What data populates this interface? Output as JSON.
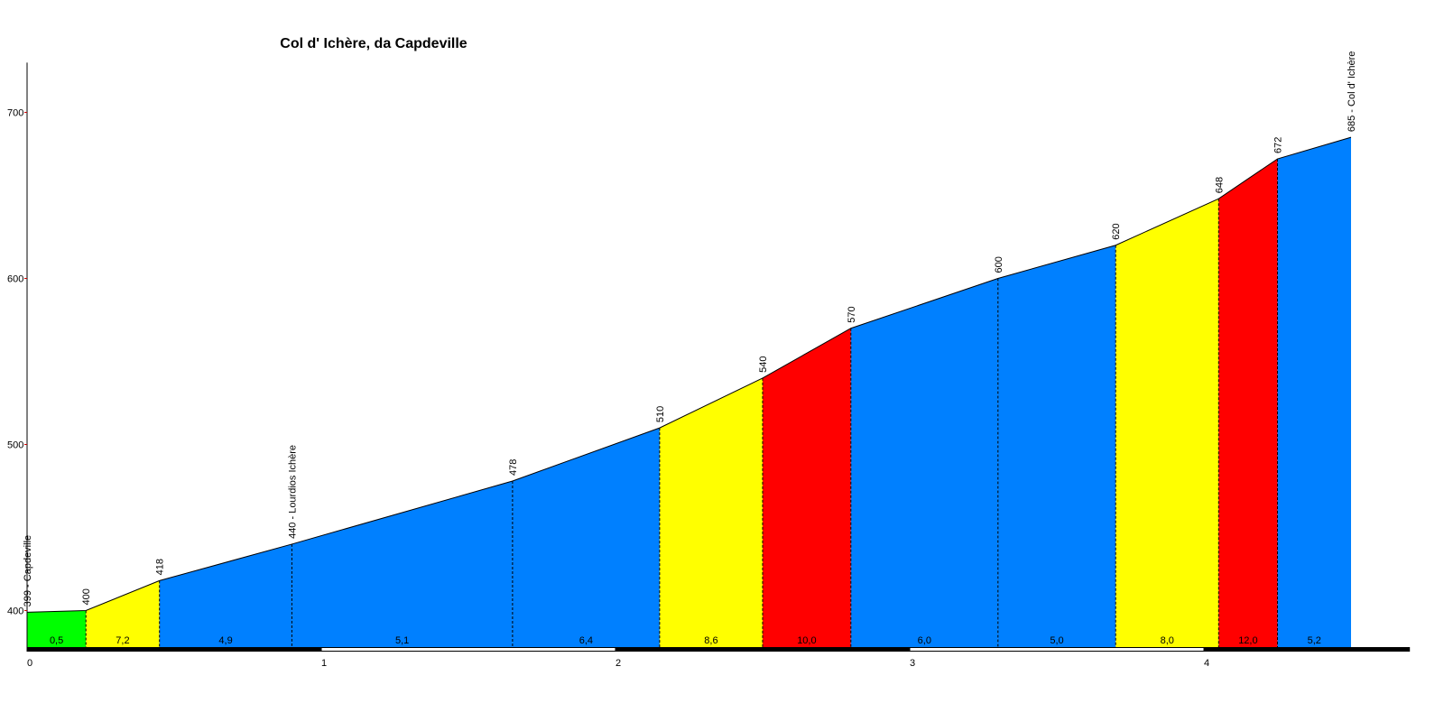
{
  "chart_data": {
    "type": "profile",
    "title": "Col d' Ichère, da Capdeville",
    "x": [
      0,
      0.2,
      0.45,
      0.9,
      1.65,
      2.15,
      2.5,
      2.8,
      3.3,
      3.7,
      4.05,
      4.25,
      4.5
    ],
    "values": [
      399,
      400,
      418,
      440,
      478,
      510,
      540,
      570,
      600,
      620,
      648,
      672,
      685
    ],
    "value_labels": [
      "399 - Capdeville",
      "400",
      "418",
      "440 - Lourdios Ichère",
      "478",
      "510",
      "540",
      "570",
      "600",
      "620",
      "648",
      "672",
      "685 - Col d' Ichère"
    ],
    "gradients": [
      0.5,
      7.2,
      4.9,
      5.1,
      6.4,
      8.6,
      10.0,
      6.0,
      5.0,
      8.0,
      12.0,
      5.2
    ],
    "gradient_labels": [
      "0,5",
      "7,2",
      "4,9",
      "5,1",
      "6,4",
      "8,6",
      "10,0",
      "6,0",
      "5,0",
      "8,0",
      "12,0",
      "5,2"
    ],
    "segment_colors": [
      "#00ff00",
      "#ffff00",
      "#0080ff",
      "#0080ff",
      "#0080ff",
      "#ffff00",
      "#ff0000",
      "#0080ff",
      "#0080ff",
      "#ffff00",
      "#ff0000",
      "#0080ff"
    ],
    "xlim": [
      0,
      4.7
    ],
    "ylim": [
      378,
      730
    ],
    "xticks": [
      0,
      1,
      2,
      3,
      4
    ],
    "yticks": [
      400,
      500,
      600,
      700
    ]
  }
}
